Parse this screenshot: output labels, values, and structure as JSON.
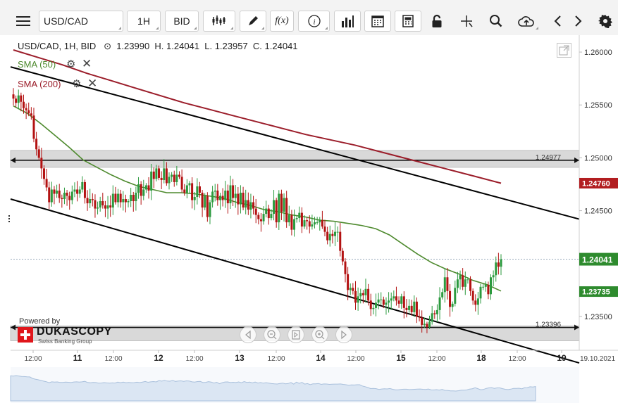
{
  "toolbar": {
    "symbol": "USD/CAD",
    "timeframe": "1H",
    "price_side": "BID",
    "function_label": "f(x)",
    "info_label": "i",
    "icons": [
      "menu-icon",
      "candlestick-icon",
      "pencil-icon",
      "function-icon",
      "info-icon",
      "volume-bars-icon",
      "calendar-icon",
      "calculator-icon",
      "lock-icon",
      "crosshair-icon",
      "zoom-icon",
      "cloud-upload-icon",
      "prev-icon",
      "next-icon",
      "gear-icon"
    ]
  },
  "legend": {
    "ohlc_text": "USD/CAD, 1H, BID   ⊙  1.23990  H. 1.24041  L. 1.23957  C. 1.24041",
    "sma50_label": "SMA (50)",
    "sma200_label": "SMA (200)"
  },
  "branding": {
    "powered_by": "Powered by",
    "name": "DUKASCOPY",
    "sub": "Swiss Banking Group"
  },
  "colors": {
    "bull": "#2b9a3e",
    "bear": "#b31212",
    "sma50": "#4e8a2e",
    "sma200": "#9b1d2a",
    "trend": "#000000",
    "label_red": "#b21d20",
    "label_green": "#2e8b2e"
  },
  "chart_data": {
    "type": "candlestick",
    "symbol": "USD/CAD",
    "interval": "1H",
    "ylim": [
      1.2318,
      1.2616
    ],
    "y_ticks": [
      1.26,
      1.255,
      1.25,
      1.245,
      1.24,
      1.235
    ],
    "y_tick_labels": [
      "1.26000",
      "1.25500",
      "1.25000",
      "1.24500",
      "",
      "1.23500"
    ],
    "x_tick_labels": [
      "12:00",
      "11",
      "12:00",
      "12",
      "12:00",
      "13",
      "12:00",
      "14",
      "12:00",
      "15",
      "12:00",
      "18",
      "12:00",
      "19",
      "19.10.2021"
    ],
    "price_labels": [
      {
        "label": "1.24760",
        "value": 1.2476,
        "style": "red"
      },
      {
        "label": "1.24041",
        "value": 1.24041,
        "style": "green"
      },
      {
        "label": "1.23735",
        "value": 1.23735,
        "style": "green"
      }
    ],
    "horizontal_levels": [
      {
        "label": "1.24977",
        "value": 1.24977,
        "band": [
          1.2491,
          1.2507
        ]
      },
      {
        "label": "1.23396",
        "value": 1.23396,
        "band": [
          1.2327,
          1.2341
        ]
      }
    ],
    "current_price": 1.24041,
    "ohlc": {
      "open": 1.2399,
      "high": 1.24041,
      "low": 1.23957,
      "close": 1.24041
    },
    "candles_close": [
      1.2556,
      1.2552,
      1.2559,
      1.2553,
      1.2547,
      1.2545,
      1.2542,
      1.254,
      1.2518,
      1.2508,
      1.25,
      1.249,
      1.248,
      1.2472,
      1.2458,
      1.247,
      1.2466,
      1.2469,
      1.2462,
      1.2461,
      1.2467,
      1.2464,
      1.246,
      1.2468,
      1.247,
      1.2466,
      1.247,
      1.2477,
      1.2462,
      1.2457,
      1.2461,
      1.246,
      1.2452,
      1.2453,
      1.2459,
      1.2455,
      1.2452,
      1.2455,
      1.2453,
      1.2466,
      1.2458,
      1.2466,
      1.2458,
      1.2461,
      1.2458,
      1.2459,
      1.2465,
      1.2459,
      1.2467,
      1.2475,
      1.2464,
      1.247,
      1.2474,
      1.2469,
      1.2487,
      1.248,
      1.249,
      1.2481,
      1.2479,
      1.249,
      1.2476,
      1.2482,
      1.2484,
      1.2477,
      1.2484,
      1.2482,
      1.247,
      1.2467,
      1.2474,
      1.2476,
      1.246,
      1.2463,
      1.2473,
      1.2467,
      1.2453,
      1.2464,
      1.2444,
      1.2458,
      1.2468,
      1.2469,
      1.246,
      1.2464,
      1.246,
      1.2469,
      1.2457,
      1.2474,
      1.2462,
      1.2466,
      1.2456,
      1.2467,
      1.2453,
      1.246,
      1.2451,
      1.2458,
      1.2452,
      1.2446,
      1.2442,
      1.244,
      1.2447,
      1.2452,
      1.2443,
      1.2447,
      1.246,
      1.2439,
      1.2466,
      1.2449,
      1.2462,
      1.2439,
      1.2446,
      1.2432,
      1.2442,
      1.2443,
      1.2448,
      1.2435,
      1.2441,
      1.244,
      1.2435,
      1.2437,
      1.2439,
      1.2439,
      1.2441,
      1.2435,
      1.243,
      1.2422,
      1.2428,
      1.2426,
      1.243,
      1.243,
      1.2412,
      1.2402,
      1.239,
      1.2375,
      1.2377,
      1.2374,
      1.2363,
      1.2369,
      1.2372,
      1.237,
      1.2376,
      1.2365,
      1.2357,
      1.2358,
      1.2363,
      1.2366,
      1.2366,
      1.2361,
      1.2363,
      1.2365,
      1.2367,
      1.2369,
      1.2365,
      1.2362,
      1.2369,
      1.2358,
      1.2356,
      1.236,
      1.2354,
      1.2364,
      1.235,
      1.2349,
      1.2342,
      1.2343,
      1.234,
      1.2345,
      1.2353,
      1.2352,
      1.2356,
      1.2368,
      1.2373,
      1.2387,
      1.2374,
      1.2359,
      1.2362,
      1.2377,
      1.2385,
      1.2389,
      1.2378,
      1.2385,
      1.2385,
      1.2374,
      1.2365,
      1.2361,
      1.2367,
      1.2378,
      1.2378,
      1.238,
      1.2371,
      1.2387,
      1.2389,
      1.2401,
      1.2397,
      1.2404
    ],
    "sma_50": [
      1.2549,
      1.2542,
      1.2532,
      1.2521,
      1.251,
      1.2498,
      1.2491,
      1.2484,
      1.2478,
      1.2473,
      1.247,
      1.2467,
      1.2467,
      1.2466,
      1.2464,
      1.2462,
      1.2458,
      1.2455,
      1.2451,
      1.2449,
      1.2446,
      1.2444,
      1.2441,
      1.244,
      1.2438,
      1.2436,
      1.2433,
      1.2427,
      1.2418,
      1.2409,
      1.2401,
      1.2395,
      1.239,
      1.2384,
      1.238,
      1.2374
    ],
    "sma_200": [
      1.2602,
      1.2595,
      1.2588,
      1.258,
      1.2573,
      1.2566,
      1.2559,
      1.2552,
      1.2546,
      1.254,
      1.2534,
      1.2528,
      1.2522,
      1.2517,
      1.2512,
      1.2506,
      1.25,
      1.2494,
      1.2488,
      1.2482,
      1.2476
    ],
    "trendlines": [
      {
        "from": [
          "10 05:00",
          1.2586
        ],
        "to": [
          "18 23:00",
          1.2442
        ]
      },
      {
        "from": [
          "10 05:00",
          1.2461
        ],
        "to": [
          "18 23:00",
          1.2306
        ]
      }
    ],
    "legend": [
      "SMA (50)",
      "SMA (200)"
    ],
    "grid": false
  }
}
